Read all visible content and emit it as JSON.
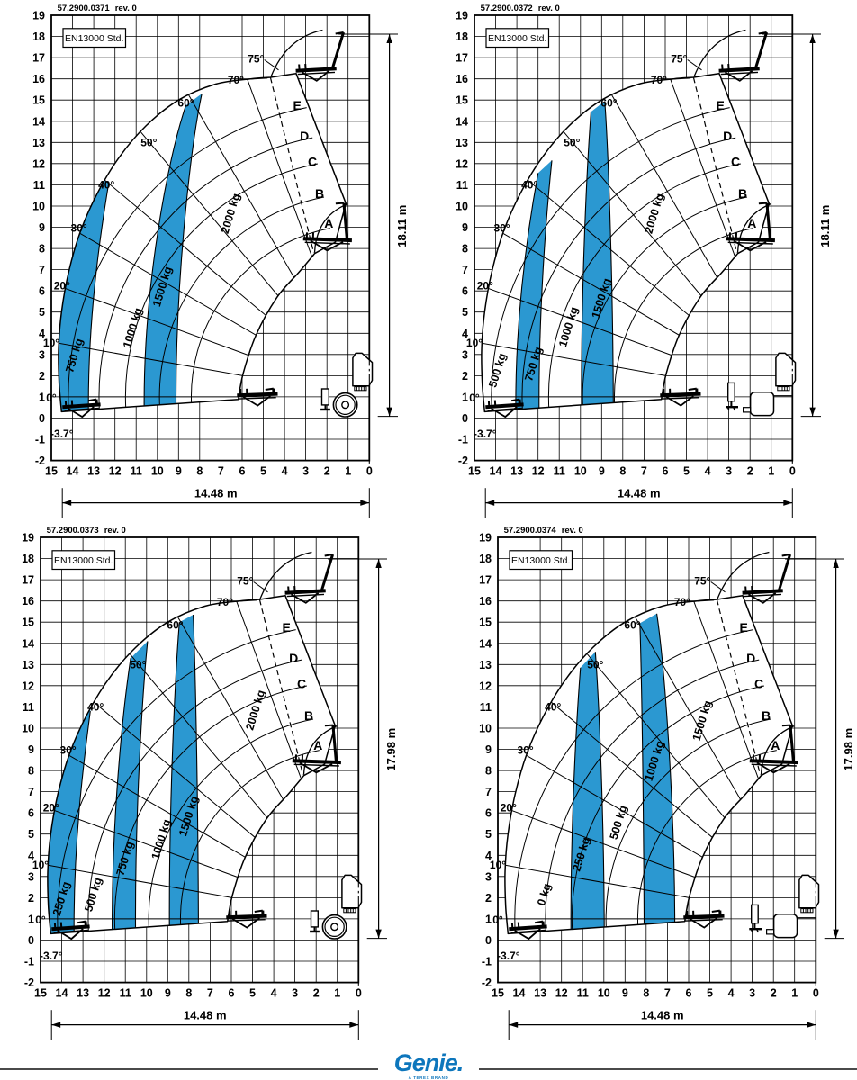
{
  "logo": {
    "text": "Genie.",
    "tagline": "A TEREX BRAND",
    "color": "#0d76bc"
  },
  "shared": {
    "colors": {
      "blue": "#2b98d1",
      "doc": "#32327e",
      "line": "#000000"
    },
    "y_ticks": [
      19,
      18,
      17,
      16,
      15,
      14,
      13,
      12,
      11,
      10,
      9,
      8,
      7,
      6,
      5,
      4,
      3,
      2,
      1,
      0,
      -1,
      -2
    ],
    "x_ticks": [
      15,
      14,
      13,
      12,
      11,
      10,
      9,
      8,
      7,
      6,
      5,
      4,
      3,
      2,
      1,
      0
    ],
    "boom_angles_deg": [
      -3.7,
      0,
      10,
      20,
      30,
      40,
      50,
      60,
      70,
      75
    ],
    "angle_labels": [
      {
        "t": "75°",
        "v": 5.35,
        "y": 16.95
      },
      {
        "t": "70°",
        "v": 6.3,
        "y": 15.95
      },
      {
        "t": "60°",
        "v": 8.65,
        "y": 14.85
      },
      {
        "t": "50°",
        "v": 10.4,
        "y": 13.0
      },
      {
        "t": "40°",
        "v": 12.4,
        "y": 11.0
      },
      {
        "t": "30°",
        "v": 13.7,
        "y": 8.95
      },
      {
        "t": "20°",
        "v": 14.5,
        "y": 6.25
      },
      {
        "t": "10°",
        "v": 15.0,
        "y": 3.55
      },
      {
        "t": "0°",
        "v": 15.0,
        "y": 0.95
      },
      {
        "t": "-3.7°",
        "v": 14.5,
        "y": -0.75
      }
    ],
    "letters": [
      {
        "t": "E",
        "v": 3.4,
        "y": 14.76
      },
      {
        "t": "D",
        "v": 3.06,
        "y": 13.3
      },
      {
        "t": "C",
        "v": 2.68,
        "y": 12.1
      },
      {
        "t": "B",
        "v": 2.34,
        "y": 10.6
      },
      {
        "t": "A",
        "v": 1.91,
        "y": 9.2
      }
    ]
  },
  "charts": [
    {
      "doc": "57,2900.0371",
      "rev": "rev. 0",
      "standard": "EN13000 Std.",
      "support": "wheels",
      "height_label": "18.11 m",
      "height_m": 18.11,
      "width_label": "14.48 m",
      "width_m": 14.48,
      "capacities": [
        "750 kg",
        "1000 kg",
        "1500 kg",
        "2000 kg"
      ],
      "highlighted": [
        "750 kg",
        "1500 kg"
      ],
      "iso_curves": [
        {
          "b": 13.25,
          "t": [
            12.3,
            11.05
          ]
        },
        {
          "b": 10.62,
          "t": [
            8.65,
            14.75
          ]
        },
        {
          "b": 9.12,
          "t": [
            7.9,
            15.3
          ]
        }
      ],
      "blue_bands": [
        [
          "env",
          0
        ],
        [
          1,
          2
        ]
      ],
      "zone_labels": [
        {
          "t": "750 kg",
          "v": 13.75,
          "y": 2.9
        },
        {
          "t": "1000 kg",
          "v": 11.0,
          "y": 4.2
        },
        {
          "t": "1500 kg",
          "v": 9.6,
          "y": 6.15
        },
        {
          "t": "2000 kg",
          "v": 6.38,
          "y": 9.6
        }
      ]
    },
    {
      "doc": "57.2900.0372",
      "rev": "rev. 0",
      "standard": "EN13000 Std.",
      "support": "stabilizers",
      "height_label": "18.11 m",
      "height_m": 18.11,
      "width_label": "14.48 m",
      "width_m": 14.48,
      "capacities": [
        "500 kg",
        "750 kg",
        "1000 kg",
        "1500 kg",
        "2000 kg"
      ],
      "highlighted": [
        "750 kg",
        "1500 kg"
      ],
      "iso_curves": [
        {
          "b": 13.05,
          "t": [
            12.0,
            11.55
          ]
        },
        {
          "b": 11.95,
          "t": [
            11.35,
            12.15
          ]
        },
        {
          "b": 9.95,
          "t": [
            9.5,
            14.45
          ]
        },
        {
          "b": 8.45,
          "t": [
            8.85,
            14.95
          ]
        }
      ],
      "blue_bands": [
        [
          0,
          1
        ],
        [
          2,
          3
        ]
      ],
      "zone_labels": [
        {
          "t": "500 kg",
          "v": 13.75,
          "y": 2.2
        },
        {
          "t": "750 kg",
          "v": 12.05,
          "y": 2.5
        },
        {
          "t": "1000 kg",
          "v": 10.4,
          "y": 4.25
        },
        {
          "t": "1500 kg",
          "v": 8.85,
          "y": 5.6
        },
        {
          "t": "2000 kg",
          "v": 6.35,
          "y": 9.6
        }
      ]
    },
    {
      "doc": "57.2900.0373",
      "rev": "rev. 0",
      "standard": "EN13000 Std.",
      "support": "wheels",
      "height_label": "17.98 m",
      "height_m": 17.98,
      "width_label": "14.48 m",
      "width_m": 14.48,
      "capacities": [
        "250 kg",
        "500 kg",
        "750 kg",
        "1000 kg",
        "1500 kg",
        "2000 kg"
      ],
      "highlighted": [
        "250 kg",
        "750 kg",
        "1500 kg"
      ],
      "iso_curves": [
        {
          "b": 13.42,
          "t": [
            12.65,
            10.8
          ]
        },
        {
          "b": 11.62,
          "t": [
            10.75,
            13.3
          ]
        },
        {
          "b": 10.52,
          "t": [
            9.95,
            14.1
          ]
        },
        {
          "b": 8.92,
          "t": [
            8.45,
            15.0
          ]
        },
        {
          "b": 7.55,
          "t": [
            7.8,
            15.35
          ]
        }
      ],
      "blue_bands": [
        [
          "env",
          0
        ],
        [
          1,
          2
        ],
        [
          3,
          4
        ]
      ],
      "zone_labels": [
        {
          "t": "250 kg",
          "v": 13.85,
          "y": 1.9
        },
        {
          "t": "500 kg",
          "v": 12.35,
          "y": 2.1
        },
        {
          "t": "750 kg",
          "v": 10.85,
          "y": 3.8
        },
        {
          "t": "1000 kg",
          "v": 9.15,
          "y": 4.7
        },
        {
          "t": "1500 kg",
          "v": 7.85,
          "y": 5.8
        },
        {
          "t": "2000 kg",
          "v": 4.7,
          "y": 10.8
        }
      ]
    },
    {
      "doc": "57.2900.0374",
      "rev": "rev. 0",
      "standard": "EN13000 Std.",
      "support": "stabilizers",
      "height_label": "17.98 m",
      "height_m": 17.98,
      "width_label": "14.48 m",
      "width_m": 14.48,
      "capacities": [
        "0 kg",
        "250 kg",
        "500 kg",
        "1000 kg",
        "1500 kg"
      ],
      "highlighted": [
        "250 kg",
        "1000 kg"
      ],
      "iso_curves": [
        {
          "b": 11.55,
          "t": [
            11.1,
            12.85
          ]
        },
        {
          "b": 9.98,
          "t": [
            10.4,
            13.6
          ]
        },
        {
          "b": 8.1,
          "t": [
            8.3,
            14.95
          ]
        },
        {
          "b": 6.65,
          "t": [
            7.5,
            15.4
          ]
        }
      ],
      "blue_bands": [
        [
          0,
          1
        ],
        [
          2,
          3
        ]
      ],
      "zone_labels": [
        {
          "t": "0 kg",
          "v": 12.65,
          "y": 2.1
        },
        {
          "t": "250 kg",
          "v": 10.9,
          "y": 4.0
        },
        {
          "t": "500 kg",
          "v": 9.15,
          "y": 5.5
        },
        {
          "t": "1000 kg",
          "v": 7.45,
          "y": 8.4
        },
        {
          "t": "1500 kg",
          "v": 5.2,
          "y": 10.3
        }
      ]
    }
  ]
}
